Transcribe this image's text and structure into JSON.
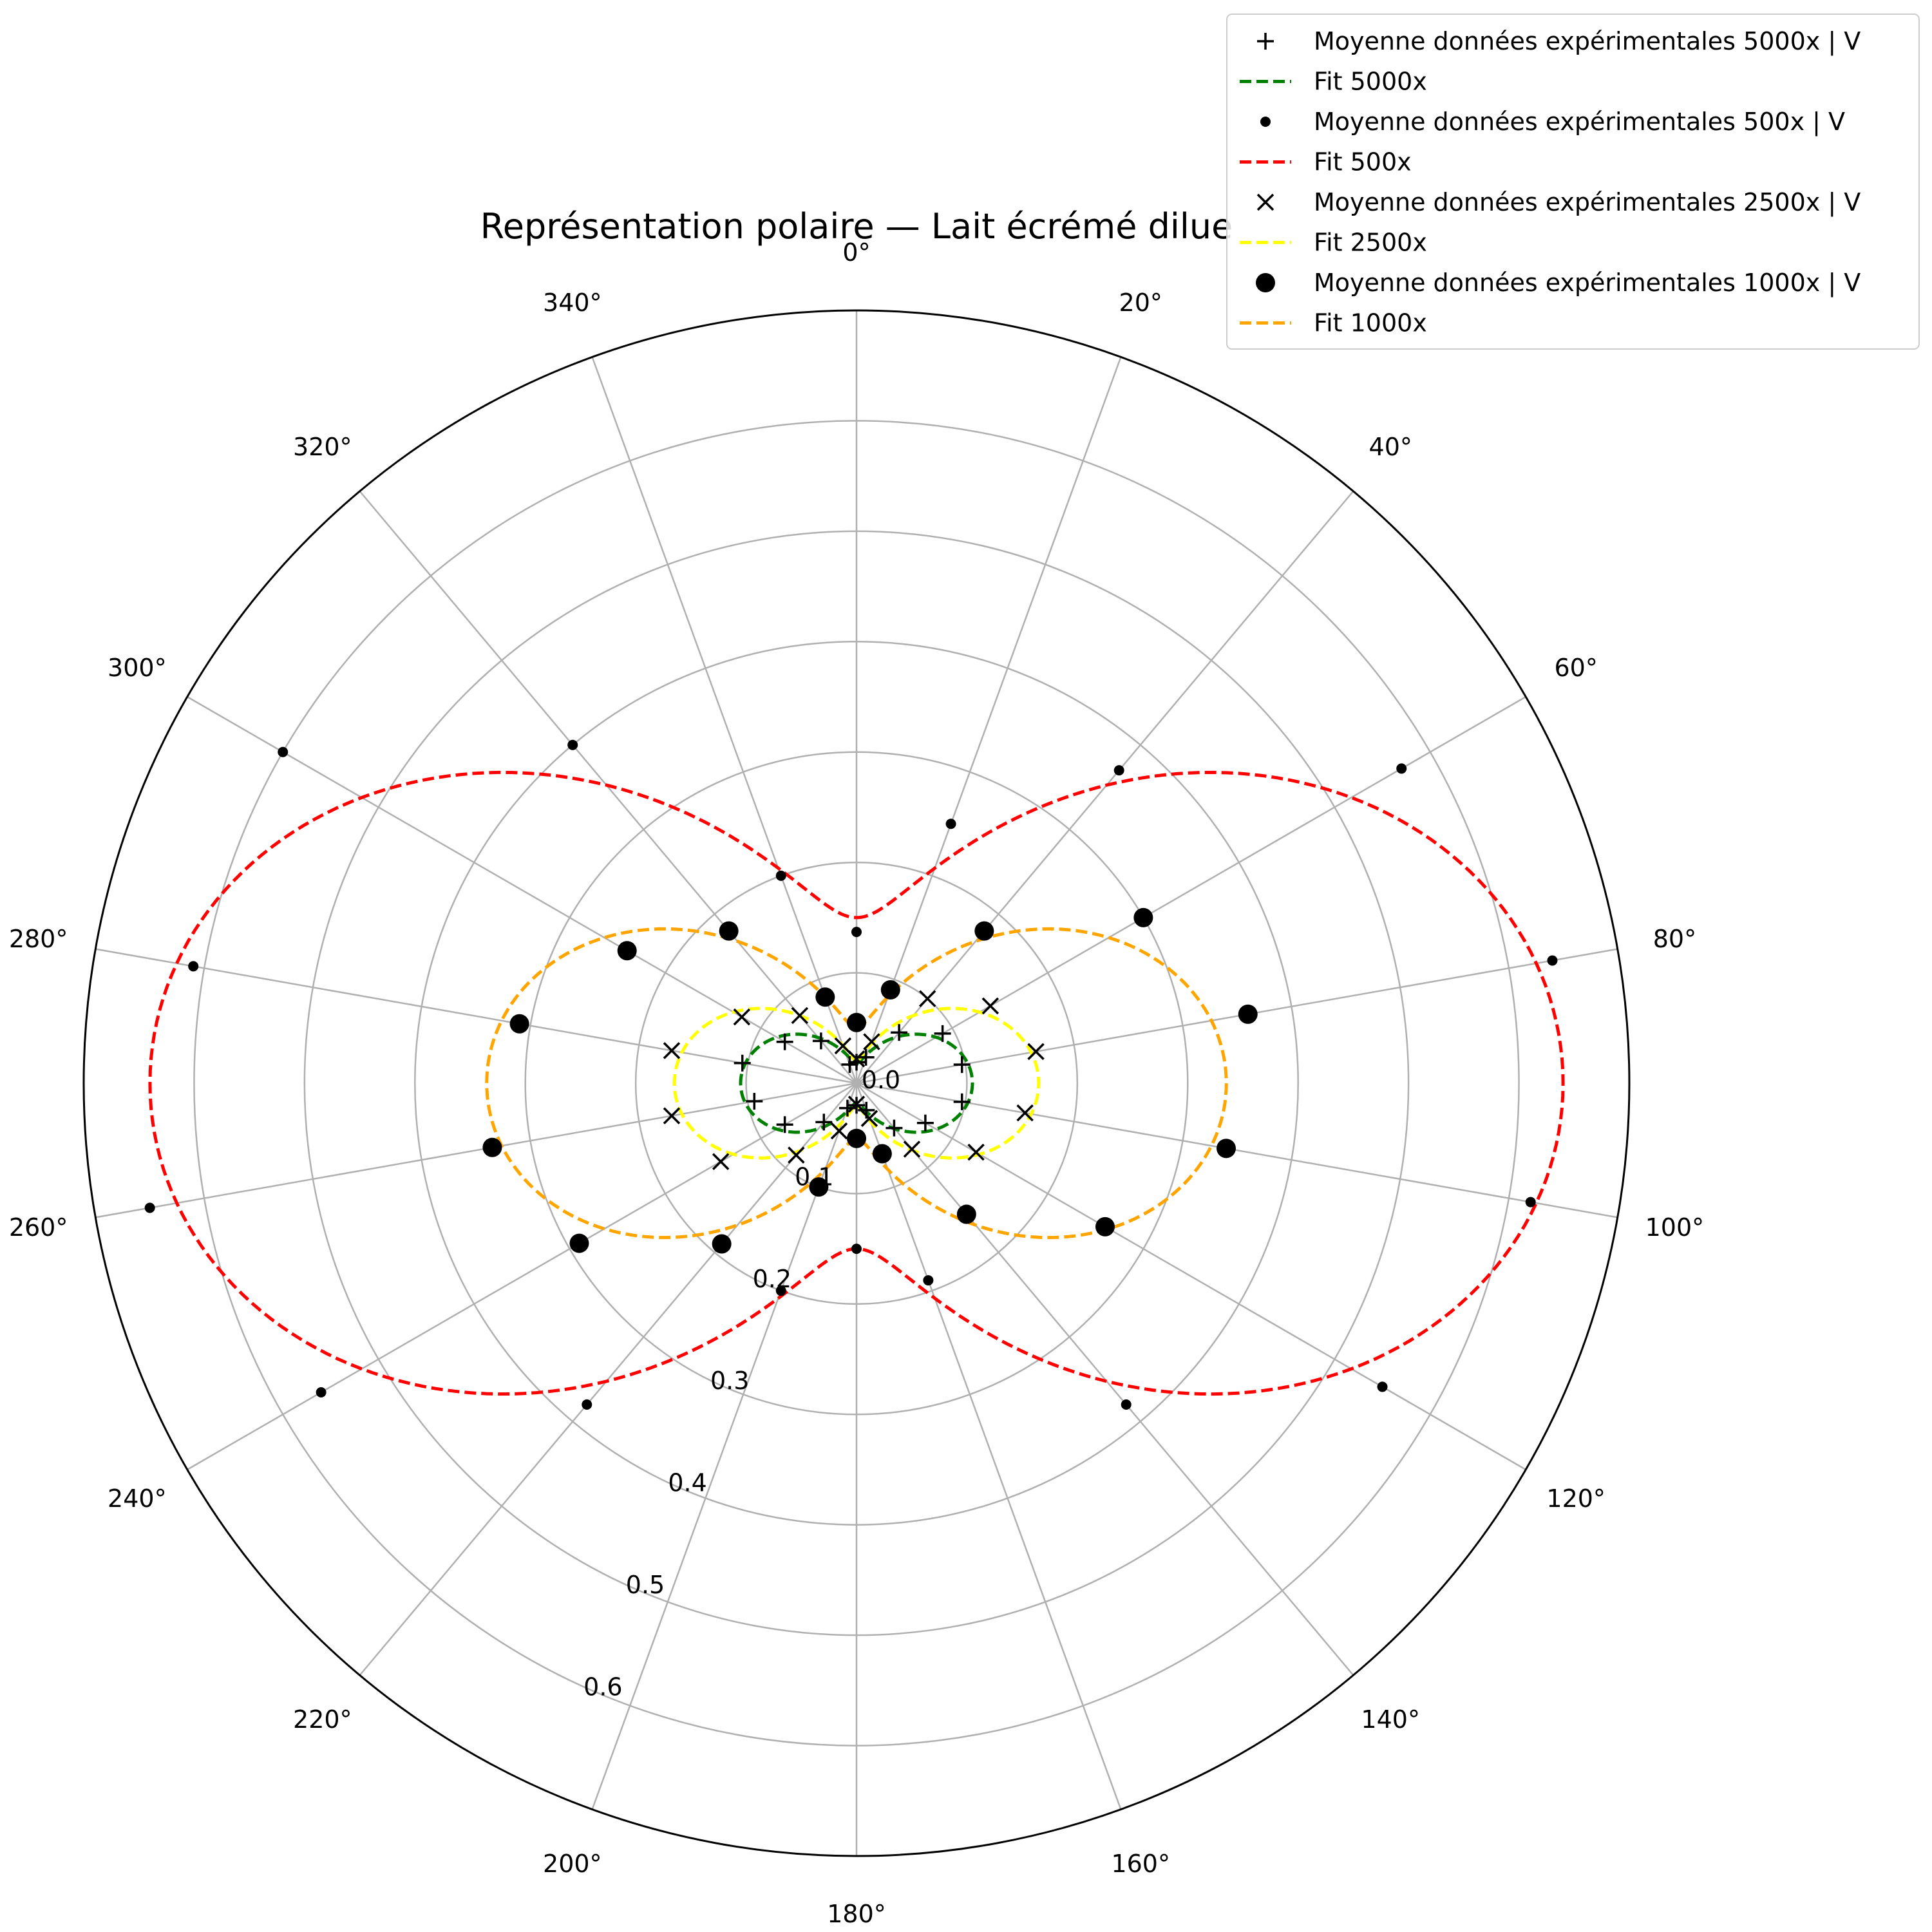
{
  "chart_data": {
    "type": "polar",
    "title": "Représentation polaire — Lait écrémé dilue",
    "theta_direction": "clockwise",
    "theta_zero": "top",
    "theta_ticks": [
      "0°",
      "20°",
      "40°",
      "60°",
      "80°",
      "100°",
      "120°",
      "140°",
      "160°",
      "180°",
      "200°",
      "220°",
      "240°",
      "260°",
      "280°",
      "300°",
      "320°",
      "340°"
    ],
    "r_ticks": [
      "0.0",
      "0.1",
      "0.2",
      "0.3",
      "0.4",
      "0.5",
      "0.6"
    ],
    "rlim": [
      0,
      0.7
    ],
    "grid": true,
    "legend_position": "top-right",
    "fit_model": "r = a + b*sin^2(theta)",
    "series": [
      {
        "name": "Moyenne données expérimentales 5000x | V",
        "kind": "markers",
        "marker": "plus",
        "color": "#000000",
        "theta_deg": [
          0,
          20,
          40,
          60,
          80,
          100,
          120,
          140,
          160,
          180,
          200,
          220,
          240,
          260,
          280,
          300,
          320,
          340
        ],
        "r": [
          0.019,
          0.025,
          0.06,
          0.09,
          0.097,
          0.097,
          0.072,
          0.053,
          0.026,
          0.02,
          0.024,
          0.046,
          0.075,
          0.094,
          0.105,
          0.075,
          0.05,
          0.018
        ]
      },
      {
        "name": "Fit 5000x",
        "kind": "fit",
        "line": "dashed",
        "color": "#008000",
        "a": 0.018,
        "b": 0.087
      },
      {
        "name": "Moyenne données expérimentales 500x | V",
        "kind": "markers",
        "marker": "small-dot",
        "color": "#000000",
        "theta_deg": [
          0,
          20,
          40,
          60,
          80,
          100,
          120,
          140,
          160,
          180,
          200,
          220,
          240,
          260,
          280,
          300,
          320,
          340
        ],
        "r": [
          0.137,
          0.25,
          0.37,
          0.57,
          0.64,
          0.62,
          0.55,
          0.38,
          0.19,
          0.15,
          0.2,
          0.38,
          0.56,
          0.65,
          0.61,
          0.6,
          0.4,
          0.2
        ],
        "theta_extra": [],
        "r_extra": []
      },
      {
        "name": "Fit 500x",
        "kind": "fit",
        "line": "dashed",
        "color": "#ff0000",
        "a": 0.15,
        "b": 0.49
      },
      {
        "name": "Moyenne données expérimentales 2500x | V",
        "kind": "markers",
        "marker": "x",
        "color": "#000000",
        "theta_deg": [
          0,
          20,
          40,
          60,
          80,
          100,
          120,
          140,
          160,
          180,
          200,
          220,
          240,
          260,
          280,
          300,
          320,
          340
        ],
        "r": [
          0.022,
          0.04,
          0.1,
          0.14,
          0.165,
          0.155,
          0.125,
          0.078,
          0.034,
          0.019,
          0.046,
          0.085,
          0.142,
          0.17,
          0.17,
          0.12,
          0.08,
          0.036
        ]
      },
      {
        "name": "Fit 2500x",
        "kind": "fit",
        "line": "dashed",
        "color": "#ffff00",
        "a": 0.02,
        "b": 0.145
      },
      {
        "name": "Moyenne données expérimentales 1000x | V",
        "kind": "markers",
        "marker": "big-dot",
        "color": "#000000",
        "theta_deg": [
          0,
          20,
          40,
          60,
          80,
          100,
          120,
          140,
          160,
          180,
          200,
          220,
          240,
          260,
          280,
          300,
          320,
          340
        ],
        "r": [
          0.055,
          0.09,
          0.18,
          0.3,
          0.36,
          0.34,
          0.26,
          0.155,
          0.068,
          0.05,
          0.1,
          0.19,
          0.29,
          0.335,
          0.31,
          0.24,
          0.18,
          0.083
        ]
      },
      {
        "name": "Fit 1000x",
        "kind": "fit",
        "line": "dashed",
        "color": "#ffa500",
        "a": 0.05,
        "b": 0.285
      }
    ]
  }
}
